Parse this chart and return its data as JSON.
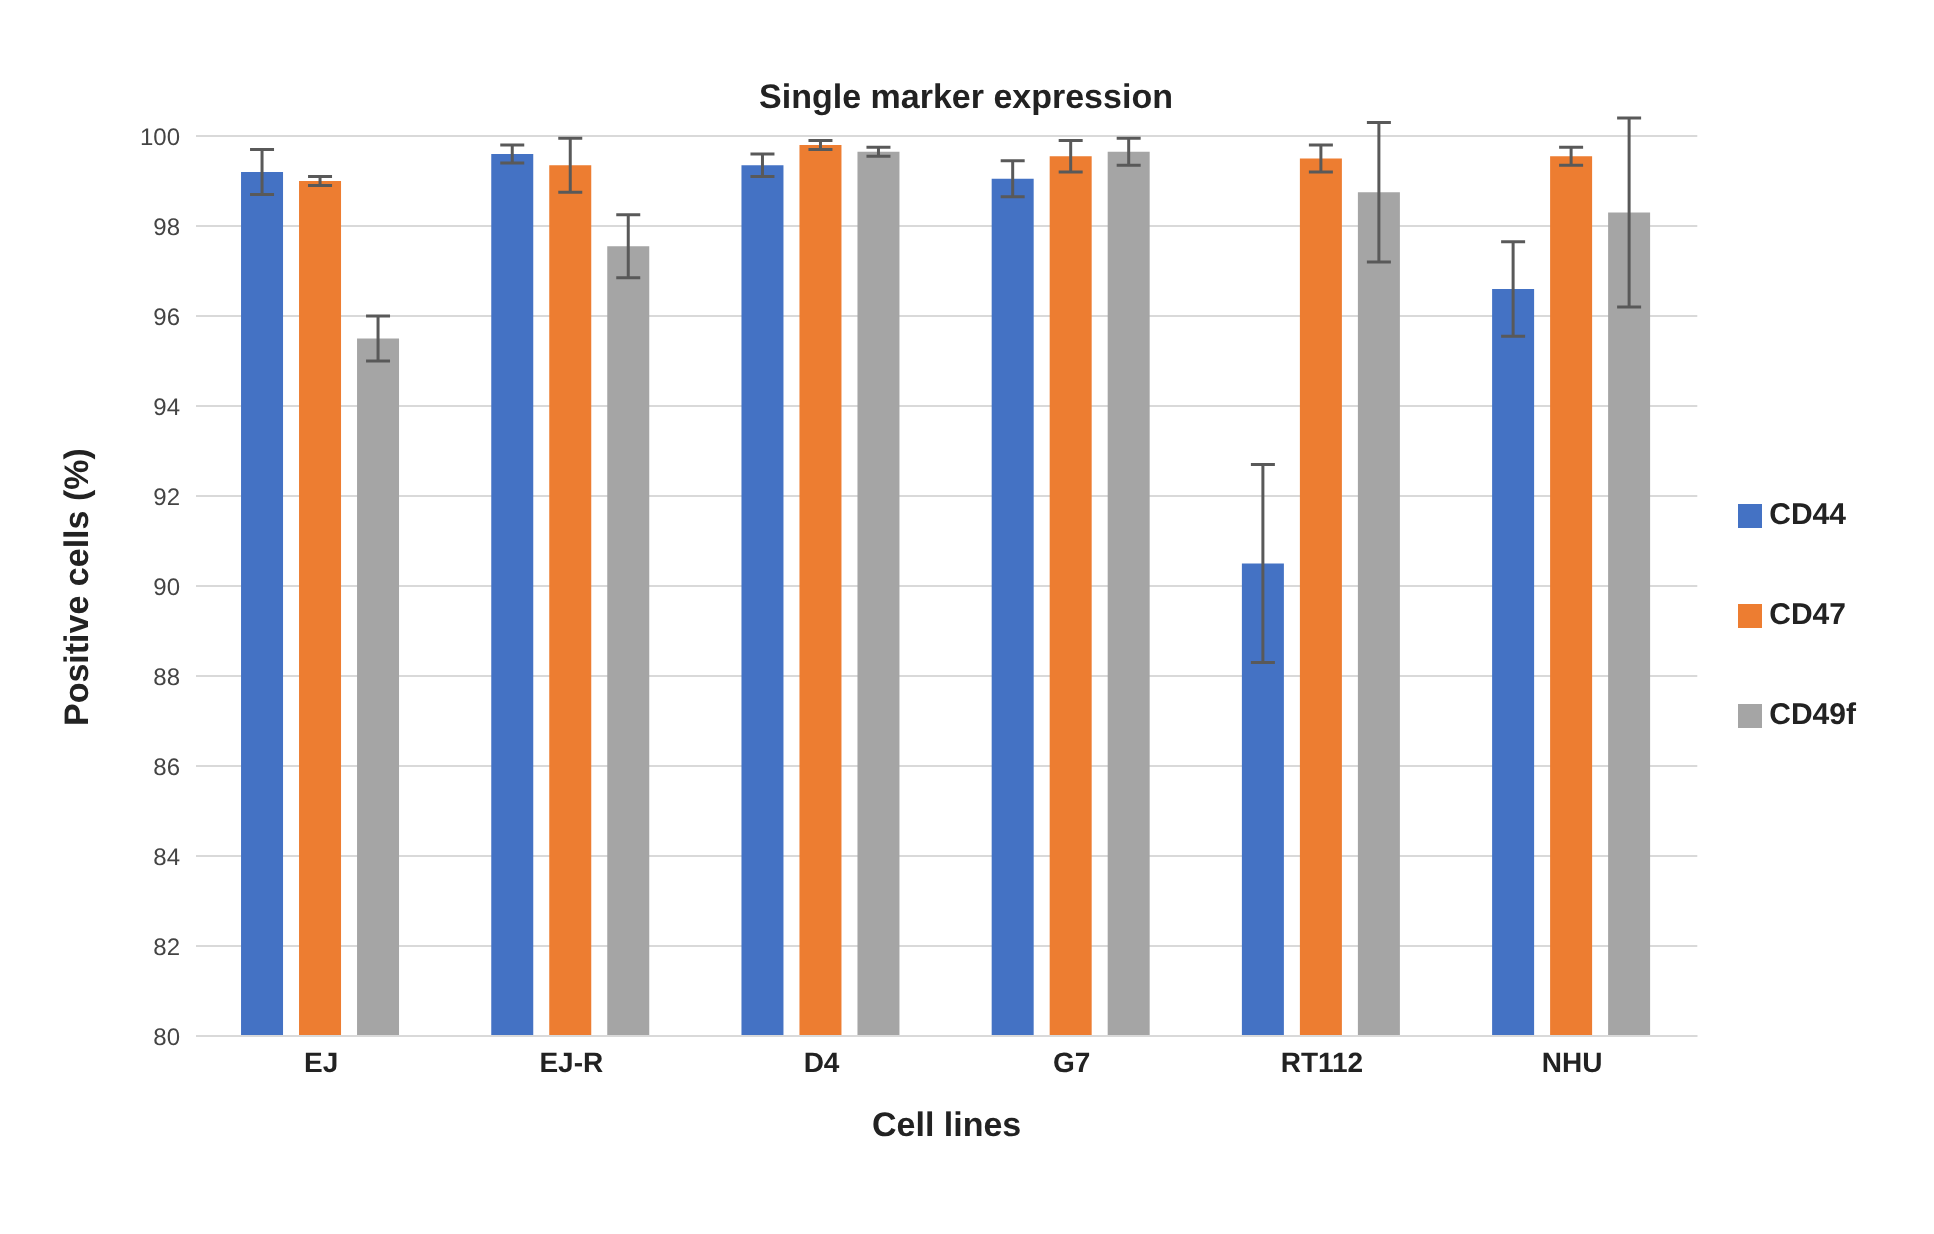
{
  "chart_data": {
    "type": "bar",
    "title": "Single marker expression",
    "xlabel": "Cell lines",
    "ylabel": "Positive cells  (%)",
    "categories": [
      "EJ",
      "EJ-R",
      "D4",
      "G7",
      "RT112",
      "NHU"
    ],
    "series": [
      {
        "name": "CD44",
        "color": "#4472c4",
        "values": [
          99.2,
          99.6,
          99.35,
          99.05,
          90.5,
          96.6
        ],
        "errors": [
          0.5,
          0.2,
          0.25,
          0.4,
          2.2,
          1.05
        ]
      },
      {
        "name": "CD47",
        "color": "#ed7d31",
        "values": [
          99.0,
          99.35,
          99.8,
          99.55,
          99.5,
          99.55
        ],
        "errors": [
          0.1,
          0.6,
          0.1,
          0.35,
          0.3,
          0.2
        ]
      },
      {
        "name": "CD49f",
        "color": "#a5a5a5",
        "values": [
          95.5,
          97.55,
          99.65,
          99.65,
          98.75,
          98.3
        ],
        "errors": [
          0.5,
          0.7,
          0.1,
          0.3,
          1.55,
          2.1
        ]
      }
    ],
    "ylim": [
      80,
      100
    ],
    "yticks": [
      80,
      82,
      84,
      86,
      88,
      90,
      92,
      94,
      96,
      98,
      100
    ],
    "grid": "y",
    "legend": "right"
  }
}
